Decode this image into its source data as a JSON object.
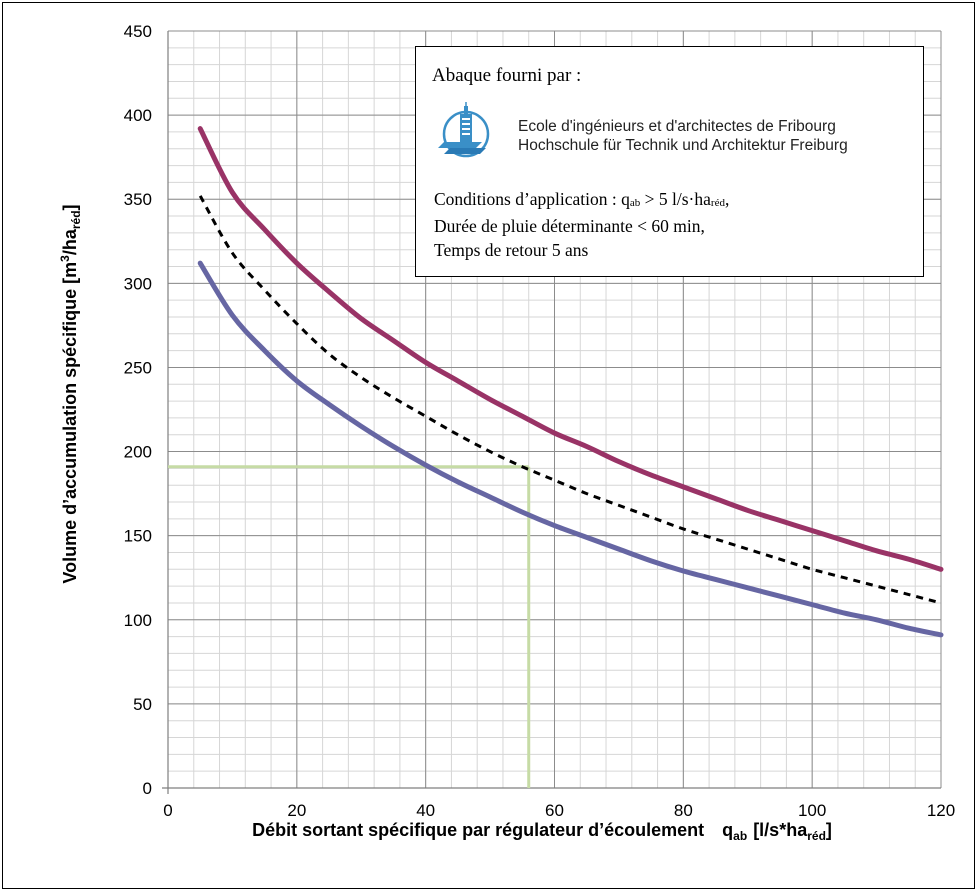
{
  "chart_data": {
    "type": "line",
    "title": "",
    "xlabel_main": "Débit sortant spécifique par régulateur d’écoulement",
    "xlabel_symbol": "q",
    "xlabel_symbol_sub": "ab",
    "xlabel_unit_pre": "[l/s*ha",
    "xlabel_unit_sub": "réd",
    "xlabel_unit_post": "]",
    "ylabel_pre": "Volume d’accumulation spécifique [m",
    "ylabel_sup": "3",
    "ylabel_mid": "/ha",
    "ylabel_sub": "réd",
    "ylabel_post": "]",
    "xlim": [
      0,
      120
    ],
    "ylim": [
      0,
      450
    ],
    "x_ticks": [
      "0",
      "20",
      "40",
      "60",
      "80",
      "100",
      "120"
    ],
    "y_ticks": [
      "0",
      "50",
      "100",
      "150",
      "200",
      "250",
      "300",
      "350",
      "400",
      "450"
    ],
    "grid": true,
    "series": [
      {
        "style": "solid",
        "color": "#993366",
        "x": [
          5,
          10,
          15,
          20,
          25,
          30,
          35,
          40,
          45,
          50,
          55,
          60,
          65,
          70,
          75,
          80,
          85,
          90,
          95,
          100,
          105,
          110,
          115,
          120
        ],
        "y": [
          392,
          354,
          332,
          312,
          295,
          279,
          266,
          253,
          242,
          231,
          221,
          211,
          203,
          194,
          186,
          179,
          172,
          165,
          159,
          153,
          147,
          141,
          136,
          130
        ]
      },
      {
        "style": "dashed",
        "color": "#000000",
        "x": [
          5,
          10,
          15,
          20,
          25,
          30,
          35,
          40,
          45,
          50,
          55,
          60,
          65,
          70,
          75,
          80,
          85,
          90,
          95,
          100,
          105,
          110,
          115,
          120
        ],
        "y": [
          352,
          318,
          296,
          276,
          258,
          244,
          232,
          221,
          210,
          200,
          191,
          183,
          175,
          168,
          161,
          154,
          148,
          142,
          136,
          130,
          125,
          120,
          115,
          110
        ]
      },
      {
        "style": "solid",
        "color": "#6666A3",
        "x": [
          5,
          10,
          15,
          20,
          25,
          30,
          35,
          40,
          45,
          50,
          55,
          60,
          65,
          70,
          75,
          80,
          85,
          90,
          95,
          100,
          105,
          110,
          115,
          120
        ],
        "y": [
          312,
          281,
          260,
          242,
          228,
          215,
          203,
          192,
          182,
          173,
          164,
          156,
          149,
          142,
          135,
          129,
          124,
          119,
          114,
          109,
          104,
          100,
          95,
          91
        ]
      }
    ],
    "reference_lines": {
      "color": "#C6DBA5",
      "horizontal_y": 191,
      "horizontal_x_end": 56,
      "vertical_x": 56,
      "vertical_y_end": 191
    },
    "annotation_box": {
      "title": "Abaque fourni par :",
      "school_line1": "Ecole d'ingénieurs et d'architectes de Fribourg",
      "school_line2": "Hochschule für Technik und Architektur Freiburg",
      "cond_line1_pre": "Conditions d’application : q",
      "cond_line1_sub1": "ab",
      "cond_line1_mid": " > 5 l/s·ha",
      "cond_line1_sub2": "réd",
      "cond_line1_post": ",",
      "cond_line2": "Durée de pluie déterminante < 60 min,",
      "cond_line3": "Temps de retour 5 ans",
      "logo_icon": "building-tower-logo-icon"
    }
  }
}
